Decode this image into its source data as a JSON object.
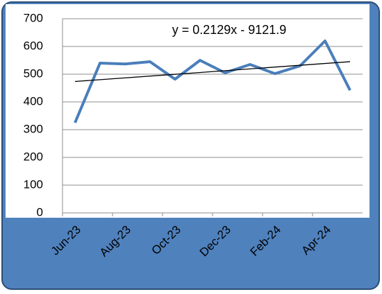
{
  "chart_data": {
    "type": "line",
    "categories": [
      "Jun-23",
      null,
      "Aug-23",
      null,
      "Oct-23",
      null,
      "Dec-23",
      null,
      "Feb-24",
      null,
      "Apr-24",
      null
    ],
    "series": [
      {
        "color": "#4a7ebb",
        "values": [
          325,
          540,
          537,
          545,
          482,
          550,
          505,
          535,
          502,
          530,
          620,
          442
        ]
      }
    ],
    "ylim": [
      0,
      700
    ],
    "yticks": [
      0,
      100,
      200,
      300,
      400,
      500,
      600,
      700
    ],
    "grid": true,
    "annotation": "y = 0.2129x - 9121.9",
    "trendline": true
  }
}
